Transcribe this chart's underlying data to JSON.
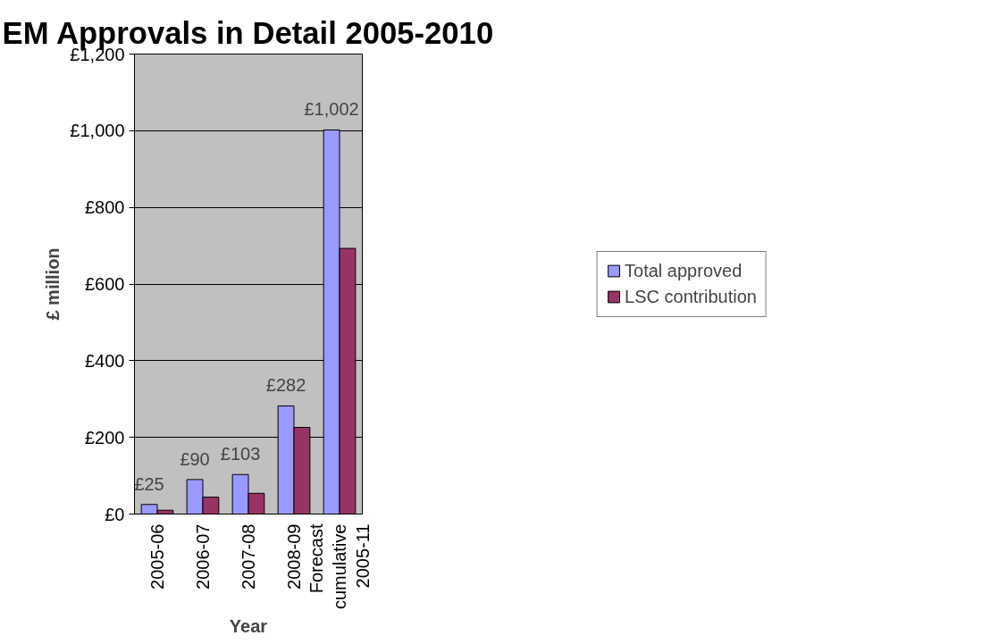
{
  "chart_data": {
    "type": "bar",
    "title": "EM Approvals in Detail 2005-2010",
    "xlabel": "Year",
    "ylabel": "£ million",
    "categories": [
      "2005-06",
      "2006-07",
      "2007-08",
      "2008-09",
      "Forecast cumulative 2005-11"
    ],
    "series": [
      {
        "name": "Total approved",
        "color": "#9999ff",
        "values": [
          25,
          90,
          103,
          282,
          1002
        ],
        "value_labels": [
          "£25",
          "£90",
          "£103",
          "£282",
          "£1,002"
        ]
      },
      {
        "name": "LSC contribution",
        "color": "#993366",
        "values": [
          10,
          44,
          54,
          226,
          693
        ]
      }
    ],
    "ylim": [
      0,
      1200
    ],
    "yticks": [
      {
        "value": 0,
        "label": "£0"
      },
      {
        "value": 200,
        "label": "£200"
      },
      {
        "value": 400,
        "label": "£400"
      },
      {
        "value": 600,
        "label": "£600"
      },
      {
        "value": 800,
        "label": "£800"
      },
      {
        "value": 1000,
        "label": "£1,000"
      },
      {
        "value": 1200,
        "label": "£1,200"
      }
    ],
    "grid": "y",
    "legend": "right"
  }
}
